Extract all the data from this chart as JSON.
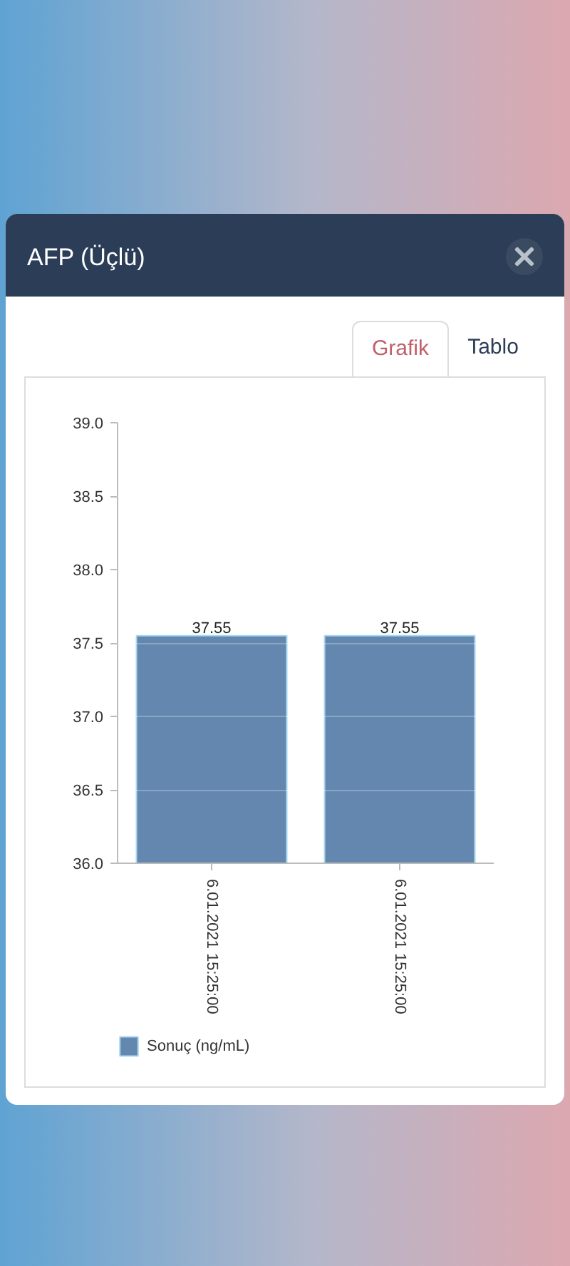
{
  "chart_data": {
    "type": "bar",
    "title": "AFP (Üçlü)",
    "annotations": [
      "Grafik",
      "Tablo"
    ],
    "categories": [
      "6.01.2021 15:25:00",
      "6.01.2021 15:25:00"
    ],
    "series": [
      {
        "name": "Sonuç (ng/mL)",
        "color": "#6487b0",
        "values": [
          37.55,
          37.55
        ]
      }
    ],
    "ylim": [
      36,
      39
    ],
    "yticks": [
      {
        "value": 36,
        "label": "36.0"
      },
      36.5,
      {
        "value": 37,
        "label": "37.0"
      },
      37.5,
      {
        "value": 38,
        "label": "38.0"
      },
      38.5,
      {
        "value": 39,
        "label": "39.0"
      }
    ],
    "grid": "y",
    "legend": "bottom left",
    "data_labels": true
  }
}
